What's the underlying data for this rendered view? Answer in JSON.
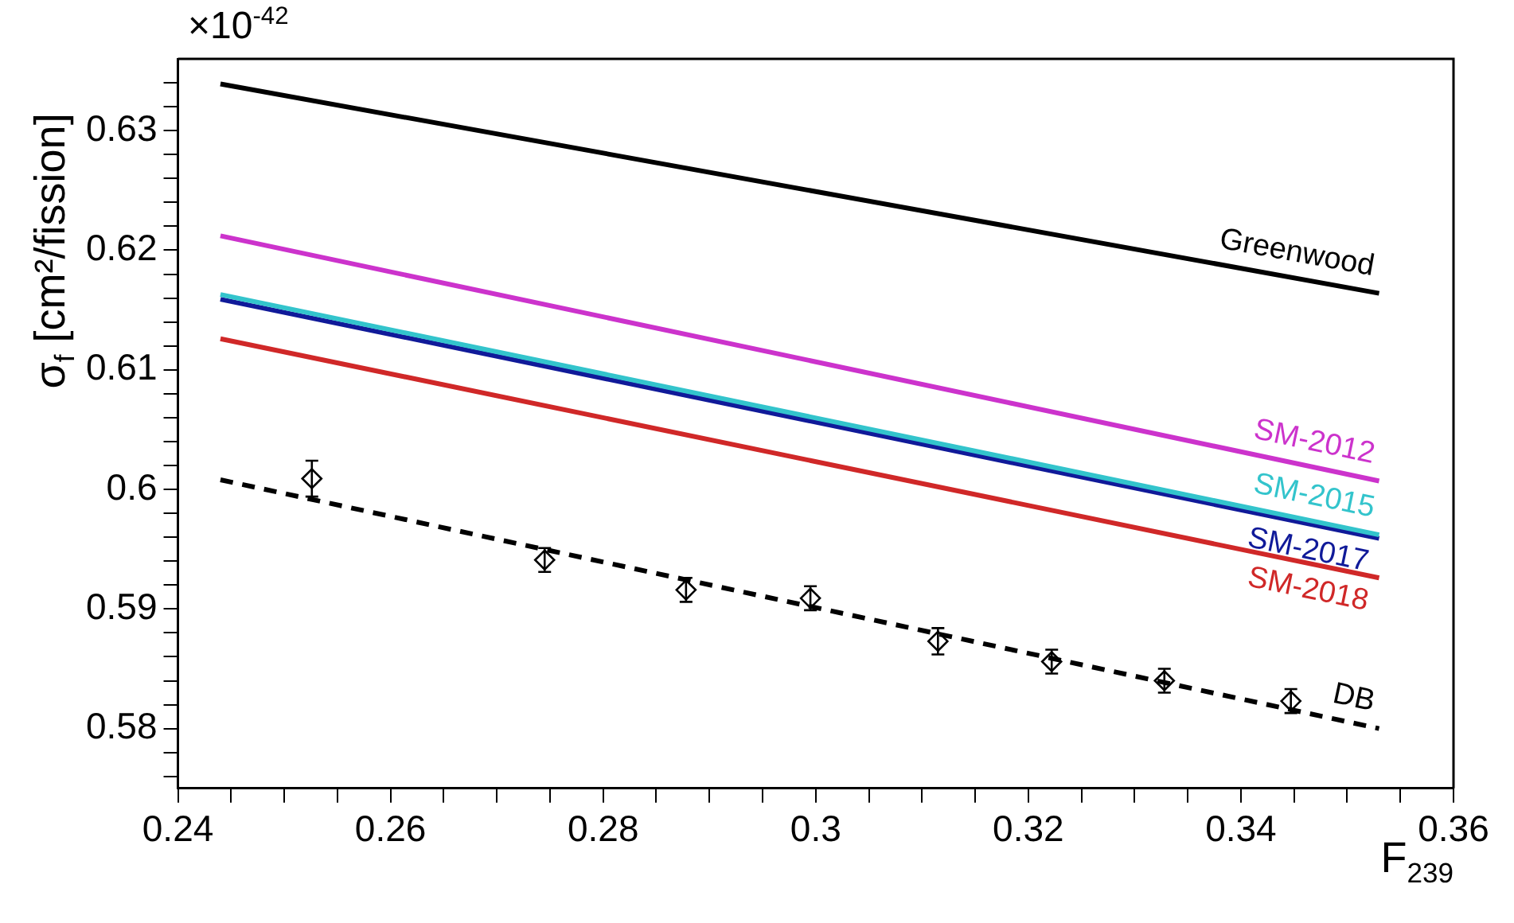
{
  "chart_data": {
    "type": "line",
    "xlabel": "F$_{239}$",
    "ylabel": "σ$_{f}$ [cm²/fission]",
    "annotations": [
      "×10$^{-42}$"
    ],
    "xlim": [
      0.24,
      0.36
    ],
    "ylim": [
      0.575,
      0.636
    ],
    "xticks": [
      0.24,
      {
        "value": 0.245,
        "label": null
      },
      {
        "value": 0.25,
        "label": null
      },
      {
        "value": 0.255,
        "label": null
      },
      0.26,
      {
        "value": 0.265,
        "label": null
      },
      {
        "value": 0.27,
        "label": null
      },
      {
        "value": 0.275,
        "label": null
      },
      0.28,
      {
        "value": 0.285,
        "label": null
      },
      {
        "value": 0.29,
        "label": null
      },
      {
        "value": 0.295,
        "label": null
      },
      0.3,
      {
        "value": 0.305,
        "label": null
      },
      {
        "value": 0.31,
        "label": null
      },
      {
        "value": 0.315,
        "label": null
      },
      0.32,
      {
        "value": 0.325,
        "label": null
      },
      {
        "value": 0.33,
        "label": null
      },
      {
        "value": 0.335,
        "label": null
      },
      0.34,
      {
        "value": 0.345,
        "label": null
      },
      {
        "value": 0.35,
        "label": null
      },
      {
        "value": 0.355,
        "label": null
      },
      0.36
    ],
    "yticks": [
      {
        "value": 0.576,
        "label": null
      },
      {
        "value": 0.578,
        "label": null
      },
      0.58,
      {
        "value": 0.582,
        "label": null
      },
      {
        "value": 0.584,
        "label": null
      },
      {
        "value": 0.586,
        "label": null
      },
      {
        "value": 0.588,
        "label": null
      },
      0.59,
      {
        "value": 0.592,
        "label": null
      },
      {
        "value": 0.594,
        "label": null
      },
      {
        "value": 0.596,
        "label": null
      },
      {
        "value": 0.598,
        "label": null
      },
      0.6,
      {
        "value": 0.602,
        "label": null
      },
      {
        "value": 0.604,
        "label": null
      },
      {
        "value": 0.606,
        "label": null
      },
      {
        "value": 0.608,
        "label": null
      },
      0.61,
      {
        "value": 0.612,
        "label": null
      },
      {
        "value": 0.614,
        "label": null
      },
      {
        "value": 0.616,
        "label": null
      },
      {
        "value": 0.618,
        "label": null
      },
      0.62,
      {
        "value": 0.622,
        "label": null
      },
      {
        "value": 0.624,
        "label": null
      },
      {
        "value": 0.626,
        "label": null
      },
      {
        "value": 0.628,
        "label": null
      },
      0.63,
      {
        "value": 0.632,
        "label": null
      },
      {
        "value": 0.634,
        "label": null
      }
    ],
    "grid": false,
    "legend": false,
    "series": [
      {
        "name": "Greenwood",
        "type": "line",
        "color": "#000000",
        "x": [
          0.244,
          0.353
        ],
        "values": [
          0.6339,
          0.6164
        ],
        "marker": "none",
        "line_style": "solid"
      },
      {
        "name": "SM-2012",
        "type": "line",
        "color": "#cc33cc",
        "x": [
          0.244,
          0.353
        ],
        "values": [
          0.6212,
          0.6007
        ],
        "marker": "none",
        "line_style": "solid"
      },
      {
        "name": "SM-2015",
        "type": "line",
        "color": "#33c4cc",
        "x": [
          0.244,
          0.353
        ],
        "values": [
          0.6163,
          0.5962
        ],
        "marker": "none",
        "line_style": "solid"
      },
      {
        "name": "SM-2017",
        "type": "line",
        "color": "#101a99",
        "x": [
          0.244,
          0.353
        ],
        "values": [
          0.6159,
          0.5959
        ],
        "marker": "none",
        "line_style": "solid"
      },
      {
        "name": "SM-2018",
        "type": "line",
        "color": "#d02828",
        "x": [
          0.244,
          0.353
        ],
        "values": [
          0.6126,
          0.5926
        ],
        "marker": "none",
        "line_style": "solid"
      },
      {
        "name": "DB",
        "type": "line",
        "color": "#000000",
        "x": [
          0.244,
          0.353
        ],
        "values": [
          0.6008,
          0.58
        ],
        "marker": "none",
        "line_style": "dashed"
      },
      {
        "type": "scatter",
        "color": "#000000",
        "x": [
          0.2526,
          0.2745,
          0.2878,
          0.2995,
          0.3115,
          0.3222,
          0.3328,
          0.3447
        ],
        "values": [
          0.6009,
          0.5941,
          0.5916,
          0.5909,
          0.5873,
          0.5856,
          0.584,
          0.5823
        ],
        "errors": [
          0.0015,
          0.001,
          0.001,
          0.001,
          0.0011,
          0.001,
          0.001,
          0.001
        ],
        "marker": "diamond"
      }
    ]
  }
}
